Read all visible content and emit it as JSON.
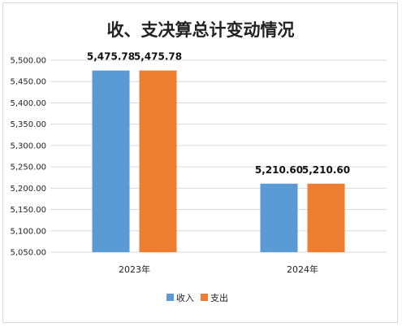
{
  "chart_data": {
    "type": "bar",
    "title": "收、支决算总计变动情况",
    "categories": [
      "2023年",
      "2024年"
    ],
    "series": [
      {
        "name": "收入",
        "color": "#5b9bd5",
        "values": [
          5475.78,
          5210.6
        ],
        "labels": [
          "5,475.78",
          "5,210.60"
        ]
      },
      {
        "name": "支出",
        "color": "#ed7d31",
        "values": [
          5475.78,
          5210.6
        ],
        "labels": [
          "5,475.78",
          "5,210.60"
        ]
      }
    ],
    "ylim": [
      5050,
      5500
    ],
    "yticks": [
      5050,
      5100,
      5150,
      5200,
      5250,
      5300,
      5350,
      5400,
      5450,
      5500
    ],
    "ytick_labels": [
      "5,050.00",
      "5,100.00",
      "5,150.00",
      "5,200.00",
      "5,250.00",
      "5,300.00",
      "5,350.00",
      "5,400.00",
      "5,450.00",
      "5,500.00"
    ],
    "grid": true,
    "legend_position": "bottom-center",
    "xlabel": "",
    "ylabel": ""
  }
}
